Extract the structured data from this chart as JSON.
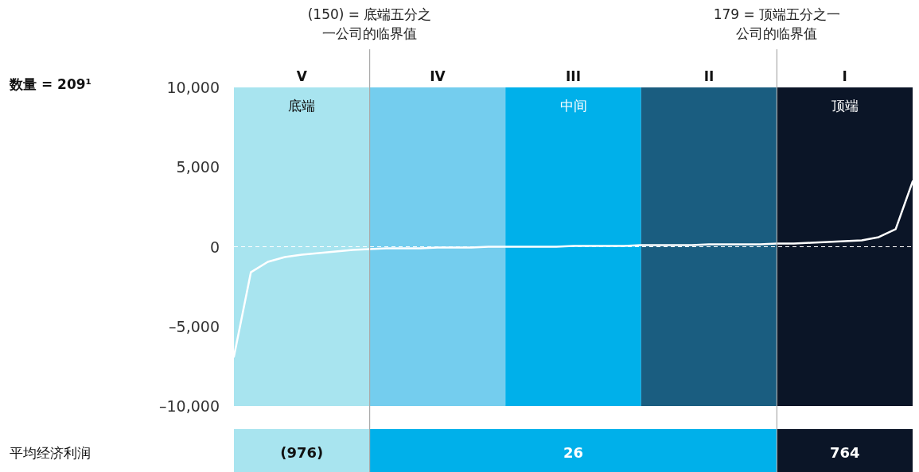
{
  "chart_data": {
    "type": "line",
    "categories": [
      null,
      null,
      null,
      null,
      null,
      null,
      null,
      null,
      null,
      null,
      null,
      null,
      null,
      null,
      null,
      null,
      null,
      null,
      null,
      null,
      null,
      null,
      null,
      null,
      null,
      null,
      null,
      null,
      null,
      null,
      null,
      null,
      null,
      null,
      null,
      null,
      null,
      null,
      null,
      null,
      null
    ],
    "series": [
      {
        "color": "#ffffff",
        "values": [
          -6900,
          -1600,
          -950,
          -650,
          -500,
          -400,
          -300,
          -200,
          -150,
          -100,
          -100,
          -100,
          -50,
          -50,
          -50,
          0,
          0,
          0,
          0,
          0,
          50,
          50,
          50,
          50,
          100,
          100,
          100,
          100,
          150,
          150,
          150,
          150,
          200,
          200,
          250,
          300,
          350,
          400,
          600,
          1100,
          4100
        ]
      }
    ],
    "ylim": [
      -10000,
      10000
    ],
    "yticks": [
      {
        "value": 10000,
        "label": "10,000"
      },
      {
        "value": 5000,
        "label": "5,000"
      },
      0,
      {
        "value": -5000,
        "label": "–5,000"
      },
      {
        "value": -10000,
        "label": "–10,000"
      }
    ],
    "tick_labels": "y",
    "grid": false,
    "marker": "none",
    "line_style": "solid",
    "ref_lines": [
      {
        "axis": "y",
        "value": 0,
        "color": "#ffffff",
        "line_style": "dashed"
      }
    ],
    "annotations": [
      "(150) = 底端五分之一公司的临界值",
      "179 = 顶端五分之一公司的临界值",
      "数量 = 209¹",
      "底端",
      "中间",
      "顶端",
      "平均经济利润",
      "(976)",
      "26",
      "764",
      "V",
      "IV",
      "III",
      "II",
      "I"
    ]
  }
}
